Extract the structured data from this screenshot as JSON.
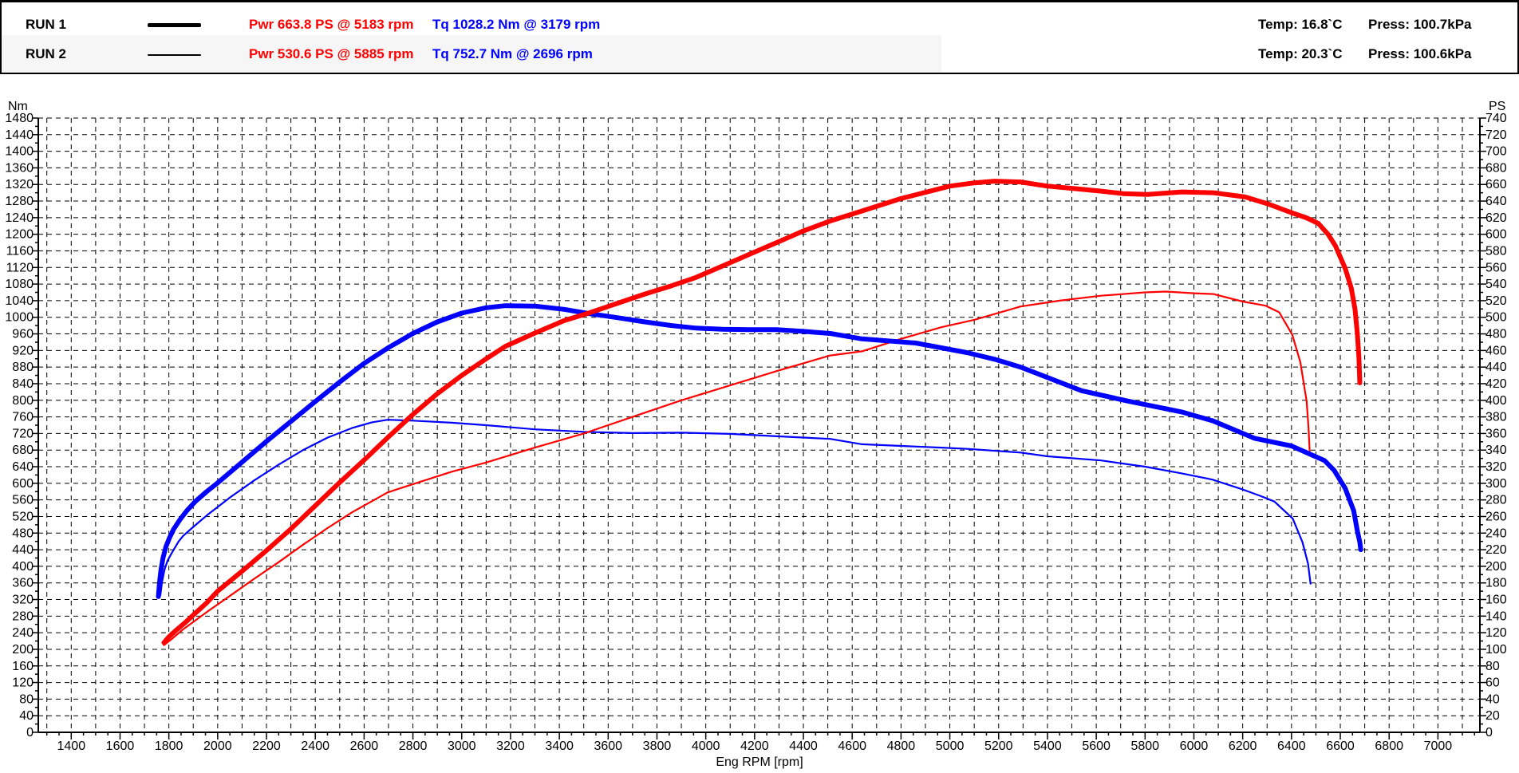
{
  "header": {
    "runs": [
      {
        "label": "RUN 1",
        "line_style": "thick",
        "pwr": "Pwr  663.8 PS @ 5183 rpm",
        "tq": "Tq 1028.2 Nm @ 3179 rpm",
        "temp": "Temp: 16.8`C",
        "press": "Press: 100.7kPa"
      },
      {
        "label": "RUN 2",
        "line_style": "thin",
        "pwr": "Pwr  530.6 PS @ 5885 rpm",
        "tq": "Tq 752.7 Nm @ 2696 rpm",
        "temp": "Temp: 20.3`C",
        "press": "Press: 100.6kPa"
      }
    ],
    "colors": {
      "power_text": "#ff0000",
      "torque_text": "#0000ff",
      "run_label_text": "#000000"
    }
  },
  "chart_data": {
    "type": "line",
    "title": "",
    "xlabel": "Eng RPM [rpm]",
    "grid": "dashed-black",
    "legend_position": "top-header",
    "x_axis": {
      "min": 1265,
      "max": 7172,
      "tick_label_start": 1400,
      "tick_label_end": 7000,
      "tick_label_step": 200,
      "grid_step": 100,
      "minor_tick_step": 50
    },
    "y_left": {
      "label": "Nm",
      "min": 0,
      "max": 1480,
      "major_step": 40,
      "minor_step": 20
    },
    "y_right": {
      "label": "PS",
      "min": 0,
      "max": 740,
      "major_step": 20,
      "minor_step": 10
    },
    "series": [
      {
        "name": "RUN 2 Torque",
        "axis": "left",
        "unit": "Nm",
        "color": "#0000ff",
        "width": 2.2,
        "peak": {
          "value": 752.7,
          "rpm": 2696
        },
        "points": [
          [
            1765,
            330
          ],
          [
            1772,
            362
          ],
          [
            1782,
            392
          ],
          [
            1795,
            414
          ],
          [
            1812,
            432
          ],
          [
            1840,
            460
          ],
          [
            1858,
            473
          ],
          [
            1900,
            495
          ],
          [
            1956,
            523
          ],
          [
            2053,
            567
          ],
          [
            2150,
            607
          ],
          [
            2250,
            645
          ],
          [
            2350,
            680
          ],
          [
            2450,
            710
          ],
          [
            2550,
            733
          ],
          [
            2632,
            747
          ],
          [
            2696,
            753
          ],
          [
            2800,
            751
          ],
          [
            2959,
            746
          ],
          [
            3100,
            740
          ],
          [
            3300,
            730
          ],
          [
            3500,
            724
          ],
          [
            3700,
            721
          ],
          [
            3900,
            722
          ],
          [
            4100,
            719
          ],
          [
            4300,
            713
          ],
          [
            4510,
            707
          ],
          [
            4640,
            694
          ],
          [
            4800,
            690
          ],
          [
            4965,
            686
          ],
          [
            5073,
            683
          ],
          [
            5290,
            674
          ],
          [
            5400,
            665
          ],
          [
            5620,
            655
          ],
          [
            5800,
            640
          ],
          [
            5950,
            624
          ],
          [
            6076,
            609
          ],
          [
            6200,
            585
          ],
          [
            6270,
            570
          ],
          [
            6330,
            556
          ],
          [
            6405,
            515
          ],
          [
            6445,
            458
          ],
          [
            6468,
            406
          ],
          [
            6478,
            358
          ]
        ]
      },
      {
        "name": "RUN 2 Power",
        "axis": "right",
        "unit": "PS",
        "color": "#ff0000",
        "width": 2.2,
        "peak": {
          "value": 530.6,
          "rpm": 5885
        },
        "points": [
          [
            1780,
            105
          ],
          [
            1810,
            112
          ],
          [
            1858,
            124
          ],
          [
            1900,
            133
          ],
          [
            1956,
            145
          ],
          [
            2053,
            165
          ],
          [
            2150,
            185
          ],
          [
            2250,
            205
          ],
          [
            2350,
            226
          ],
          [
            2450,
            246
          ],
          [
            2550,
            265
          ],
          [
            2696,
            289
          ],
          [
            2800,
            299
          ],
          [
            2959,
            314
          ],
          [
            3100,
            325
          ],
          [
            3300,
            343
          ],
          [
            3500,
            360
          ],
          [
            3700,
            380
          ],
          [
            3900,
            400
          ],
          [
            4100,
            418
          ],
          [
            4300,
            436
          ],
          [
            4510,
            454
          ],
          [
            4640,
            459
          ],
          [
            4800,
            474
          ],
          [
            4965,
            488
          ],
          [
            5100,
            497
          ],
          [
            5290,
            513
          ],
          [
            5450,
            520
          ],
          [
            5620,
            526
          ],
          [
            5800,
            530
          ],
          [
            5885,
            531
          ],
          [
            6000,
            529
          ],
          [
            6080,
            528
          ],
          [
            6200,
            519
          ],
          [
            6294,
            514
          ],
          [
            6350,
            506
          ],
          [
            6403,
            479
          ],
          [
            6436,
            446
          ],
          [
            6462,
            399
          ],
          [
            6470,
            365
          ],
          [
            6475,
            335
          ]
        ]
      },
      {
        "name": "RUN 1 Torque",
        "axis": "left",
        "unit": "Nm",
        "color": "#0000ff",
        "width": 6,
        "peak": {
          "value": 1028.2,
          "rpm": 3179
        },
        "points": [
          [
            1757,
            327
          ],
          [
            1762,
            362
          ],
          [
            1768,
            393
          ],
          [
            1776,
            420
          ],
          [
            1788,
            447
          ],
          [
            1802,
            468
          ],
          [
            1820,
            490
          ],
          [
            1845,
            512
          ],
          [
            1875,
            535
          ],
          [
            1910,
            557
          ],
          [
            1955,
            580
          ],
          [
            2000,
            601
          ],
          [
            2100,
            651
          ],
          [
            2200,
            701
          ],
          [
            2300,
            749
          ],
          [
            2400,
            797
          ],
          [
            2500,
            844
          ],
          [
            2600,
            889
          ],
          [
            2700,
            927
          ],
          [
            2800,
            961
          ],
          [
            2900,
            989
          ],
          [
            3000,
            1010
          ],
          [
            3100,
            1023
          ],
          [
            3179,
            1028
          ],
          [
            3300,
            1027
          ],
          [
            3420,
            1019
          ],
          [
            3520,
            1009
          ],
          [
            3640,
            999
          ],
          [
            3750,
            989
          ],
          [
            3860,
            980
          ],
          [
            3960,
            974
          ],
          [
            4070,
            971
          ],
          [
            4180,
            970
          ],
          [
            4290,
            970
          ],
          [
            4400,
            966
          ],
          [
            4510,
            961
          ],
          [
            4640,
            948
          ],
          [
            4860,
            938
          ],
          [
            5070,
            915
          ],
          [
            5183,
            899
          ],
          [
            5290,
            880
          ],
          [
            5540,
            823
          ],
          [
            5730,
            798
          ],
          [
            5950,
            772
          ],
          [
            6080,
            750
          ],
          [
            6250,
            708
          ],
          [
            6400,
            690
          ],
          [
            6480,
            669
          ],
          [
            6535,
            655
          ],
          [
            6575,
            631
          ],
          [
            6620,
            588
          ],
          [
            6655,
            534
          ],
          [
            6670,
            485
          ],
          [
            6680,
            458
          ],
          [
            6684,
            440
          ]
        ]
      },
      {
        "name": "RUN 1 Power",
        "axis": "right",
        "unit": "PS",
        "color": "#ff0000",
        "width": 6,
        "peak": {
          "value": 663.8,
          "rpm": 5183
        },
        "points": [
          [
            1780,
            108
          ],
          [
            1800,
            115
          ],
          [
            1830,
            123
          ],
          [
            1870,
            133
          ],
          [
            1910,
            144
          ],
          [
            1955,
            156
          ],
          [
            2000,
            170
          ],
          [
            2100,
            194
          ],
          [
            2200,
            219
          ],
          [
            2300,
            245
          ],
          [
            2400,
            273
          ],
          [
            2500,
            301
          ],
          [
            2600,
            328
          ],
          [
            2700,
            356
          ],
          [
            2800,
            383
          ],
          [
            2900,
            408
          ],
          [
            3000,
            430
          ],
          [
            3100,
            450
          ],
          [
            3179,
            465
          ],
          [
            3300,
            481
          ],
          [
            3420,
            496
          ],
          [
            3520,
            505
          ],
          [
            3640,
            517
          ],
          [
            3750,
            528
          ],
          [
            3860,
            538
          ],
          [
            3960,
            548
          ],
          [
            4070,
            562
          ],
          [
            4180,
            576
          ],
          [
            4290,
            590
          ],
          [
            4400,
            604
          ],
          [
            4510,
            616
          ],
          [
            4640,
            628
          ],
          [
            4800,
            643
          ],
          [
            5000,
            658
          ],
          [
            5100,
            662
          ],
          [
            5183,
            664
          ],
          [
            5290,
            663
          ],
          [
            5400,
            658
          ],
          [
            5510,
            655
          ],
          [
            5620,
            652
          ],
          [
            5710,
            649
          ],
          [
            5810,
            648
          ],
          [
            5950,
            651
          ],
          [
            6080,
            650
          ],
          [
            6210,
            645
          ],
          [
            6300,
            637
          ],
          [
            6400,
            626
          ],
          [
            6460,
            620
          ],
          [
            6510,
            613
          ],
          [
            6550,
            600
          ],
          [
            6580,
            586
          ],
          [
            6620,
            559
          ],
          [
            6645,
            535
          ],
          [
            6660,
            510
          ],
          [
            6670,
            480
          ],
          [
            6676,
            452
          ],
          [
            6680,
            421
          ]
        ]
      }
    ]
  }
}
